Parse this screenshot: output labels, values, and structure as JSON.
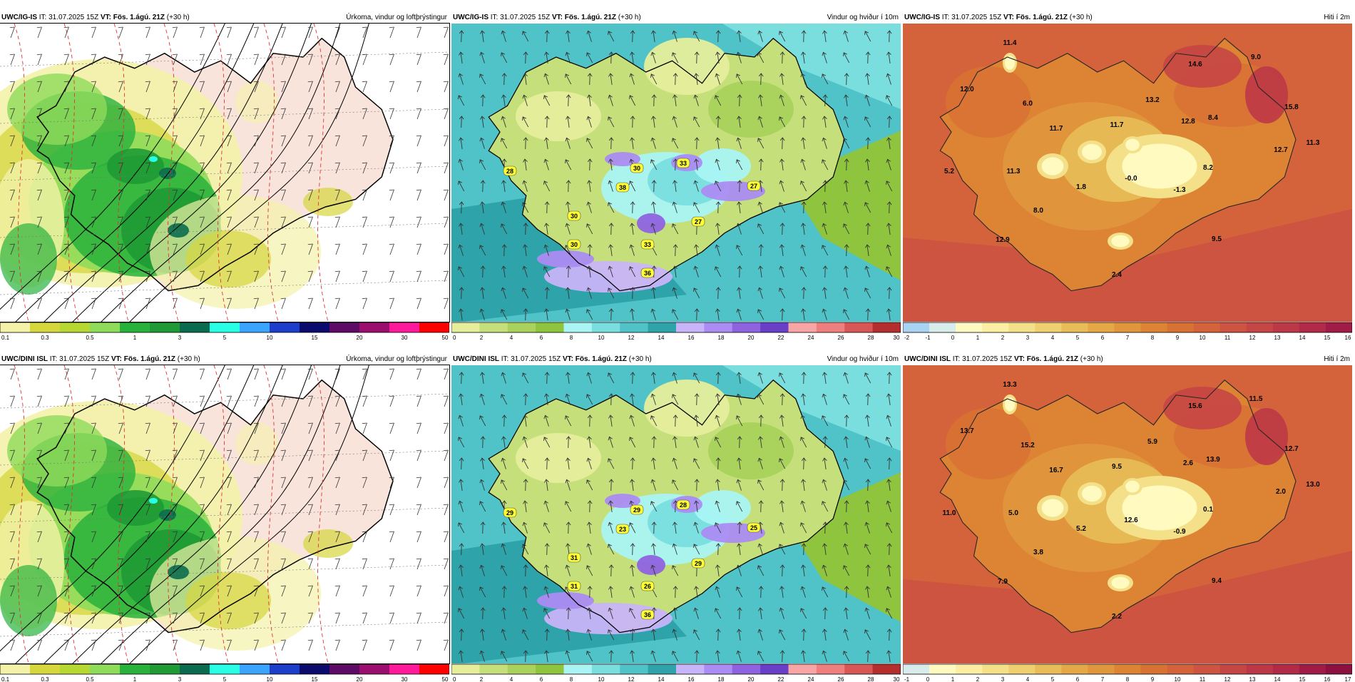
{
  "panels": [
    {
      "id": "p1",
      "model": "UWC/IG-IS",
      "it_label": "IT:",
      "it_value": "31.07.2025 15Z",
      "vt_label": "VT:",
      "vt_value": "Fös. 1.ágú. 21Z",
      "lead": "(+30 h)",
      "field": "Úrkoma, vindur og loftþrýstingur",
      "kind": "precip",
      "framed": true,
      "legend": {
        "colors": [
          "#f3f2a8",
          "#d6d63d",
          "#b6d830",
          "#8fdb5a",
          "#28b23c",
          "#1f9a35",
          "#0b6b4e",
          "#28ffe4",
          "#3aa4ff",
          "#1c3ecb",
          "#0b0b6e",
          "#5e0b66",
          "#9b0e6e",
          "#ff1a9c",
          "#ff0000"
        ],
        "labels": [
          "0.1",
          "0.3",
          "0.5",
          "1",
          "3",
          "5",
          "10",
          "15",
          "20",
          "30",
          "50"
        ]
      }
    },
    {
      "id": "p2",
      "model": "UWC/IG-IS",
      "it_label": "IT:",
      "it_value": "31.07.2025 15Z",
      "vt_label": "VT:",
      "vt_value": "Fös. 1.ágú. 21Z",
      "lead": "(+30 h)",
      "field": "Vindur og hviður í 10m",
      "kind": "wind",
      "gusts": [
        "28",
        "30",
        "33",
        "38",
        "27",
        "27",
        "30",
        "30",
        "33",
        "36"
      ],
      "legend": {
        "colors": [
          "#e6ee9c",
          "#c5e07a",
          "#a9d25c",
          "#8ec43e",
          "#aaf4f4",
          "#7adede",
          "#4fc3c8",
          "#2fa3aa",
          "#c8b4f8",
          "#ab8cf2",
          "#8f63e0",
          "#6a3fc8",
          "#f7a5a5",
          "#ef7f7f",
          "#d85656",
          "#b42e2e"
        ],
        "labels": [
          "0",
          "2",
          "4",
          "6",
          "8",
          "10",
          "12",
          "14",
          "16",
          "18",
          "20",
          "22",
          "24",
          "26",
          "28",
          "30"
        ]
      }
    },
    {
      "id": "p3",
      "model": "UWC/IG-IS",
      "it_label": "IT:",
      "it_value": "31.07.2025 15Z",
      "vt_label": "VT:",
      "vt_value": "Fös. 1.ágú. 21Z",
      "lead": "(+30 h)",
      "field": "Hiti í 2m",
      "kind": "temp",
      "temps": [
        "11.4",
        "14.6",
        "9.0",
        "12.0",
        "6.0",
        "13.2",
        "15.8",
        "11.7",
        "11.7",
        "12.8",
        "8.4",
        "11.3",
        "5.2",
        "11.3",
        "12.7",
        "8.2",
        "1.8",
        "-0.0",
        "-1.3",
        "8.0",
        "12.9",
        "9.5",
        "2.4"
      ],
      "legend": {
        "colors": [
          "#a9d3f3",
          "#d8ecec",
          "#fffac0",
          "#fcefa4",
          "#f5e08a",
          "#efcf70",
          "#e8bc58",
          "#e4a847",
          "#e0963c",
          "#dc8334",
          "#d87234",
          "#d4623a",
          "#cc5440",
          "#c54644",
          "#bd3846",
          "#b22a48",
          "#a01c46"
        ],
        "labels": [
          "-2",
          "-1",
          "0",
          "1",
          "2",
          "3",
          "4",
          "5",
          "6",
          "7",
          "8",
          "9",
          "10",
          "11",
          "12",
          "13",
          "14",
          "15",
          "16"
        ]
      }
    },
    {
      "id": "p4",
      "model": "UWC/DINI ISL",
      "it_label": "IT:",
      "it_value": "31.07.2025 15Z",
      "vt_label": "VT:",
      "vt_value": "Fös. 1.ágú. 21Z",
      "lead": "(+30 h)",
      "field": "Úrkoma, vindur og loftþrýstingur",
      "kind": "precip",
      "framed": true,
      "legend": {
        "colors": [
          "#f3f2a8",
          "#d6d63d",
          "#b6d830",
          "#8fdb5a",
          "#28b23c",
          "#1f9a35",
          "#0b6b4e",
          "#28ffe4",
          "#3aa4ff",
          "#1c3ecb",
          "#0b0b6e",
          "#5e0b66",
          "#9b0e6e",
          "#ff1a9c",
          "#ff0000"
        ],
        "labels": [
          "0.1",
          "0.3",
          "0.5",
          "1",
          "3",
          "5",
          "10",
          "15",
          "20",
          "30",
          "50"
        ]
      }
    },
    {
      "id": "p5",
      "model": "UWC/DINI ISL",
      "it_label": "IT:",
      "it_value": "31.07.2025 15Z",
      "vt_label": "VT:",
      "vt_value": "Fös. 1.ágú. 21Z",
      "lead": "(+30 h)",
      "field": "Vindur og hviður í 10m",
      "kind": "wind",
      "gusts": [
        "29",
        "29",
        "28",
        "23",
        "25",
        "29",
        "31",
        "31",
        "26",
        "36"
      ],
      "legend": {
        "colors": [
          "#e6ee9c",
          "#c5e07a",
          "#a9d25c",
          "#8ec43e",
          "#aaf4f4",
          "#7adede",
          "#4fc3c8",
          "#2fa3aa",
          "#c8b4f8",
          "#ab8cf2",
          "#8f63e0",
          "#6a3fc8",
          "#f7a5a5",
          "#ef7f7f",
          "#d85656",
          "#b42e2e"
        ],
        "labels": [
          "0",
          "2",
          "4",
          "6",
          "8",
          "10",
          "12",
          "14",
          "16",
          "18",
          "20",
          "22",
          "24",
          "26",
          "28",
          "30"
        ]
      }
    },
    {
      "id": "p6",
      "model": "UWC/DINI ISL",
      "it_label": "IT:",
      "it_value": "31.07.2025 15Z",
      "vt_label": "VT:",
      "vt_value": "Fös. 1.ágú. 21Z",
      "lead": "(+30 h)",
      "field": "Hiti í 2m",
      "kind": "temp",
      "temps": [
        "13.3",
        "15.6",
        "11.5",
        "13.7",
        "15.2",
        "5.9",
        "12.7",
        "16.7",
        "9.5",
        "2.6",
        "13.9",
        "13.0",
        "11.0",
        "5.0",
        "2.0",
        "0.1",
        "5.2",
        "12.6",
        "-0.9",
        "3.8",
        "7.9",
        "9.4",
        "2.2"
      ],
      "legend": {
        "colors": [
          "#d8ecec",
          "#fffac0",
          "#fcefa4",
          "#f5e08a",
          "#efcf70",
          "#e8bc58",
          "#e4a847",
          "#e0963c",
          "#dc8334",
          "#d87234",
          "#d4623a",
          "#cc5440",
          "#c54644",
          "#bd3846",
          "#b22a48",
          "#a01c46",
          "#8c1040"
        ],
        "labels": [
          "-1",
          "0",
          "1",
          "2",
          "3",
          "4",
          "5",
          "6",
          "7",
          "8",
          "9",
          "10",
          "11",
          "12",
          "13",
          "14",
          "15",
          "16",
          "17"
        ]
      }
    }
  ]
}
